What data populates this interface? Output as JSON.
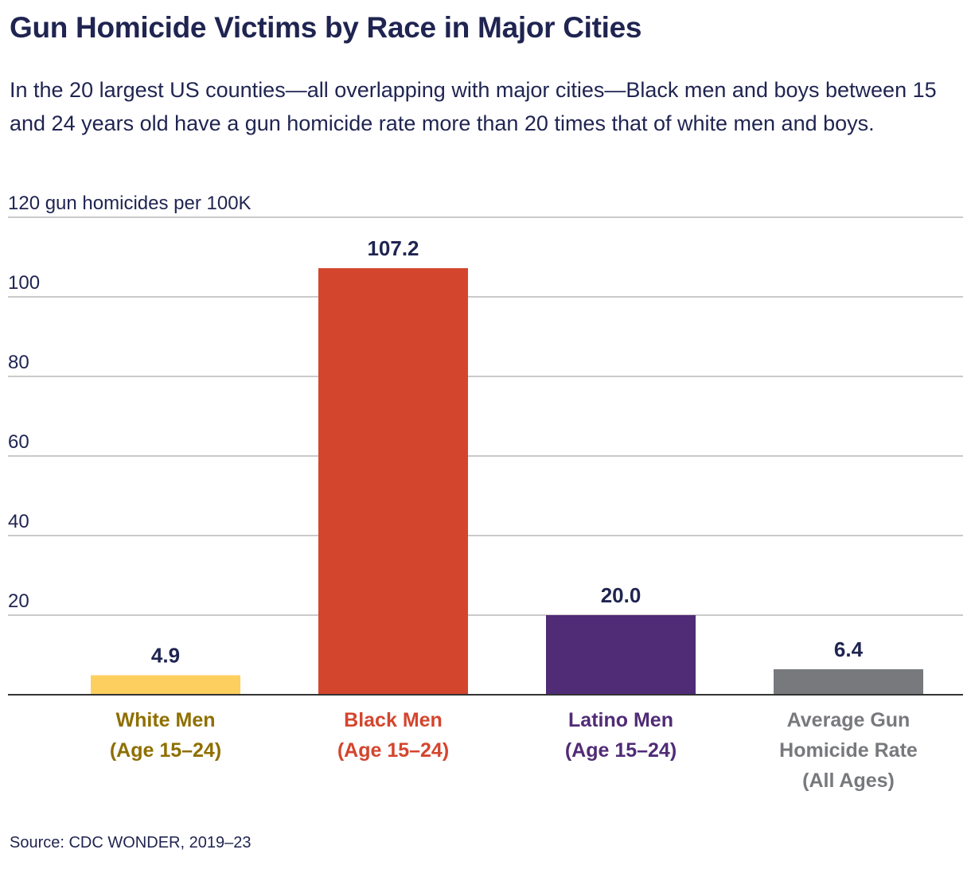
{
  "title": "Gun Homicide Victims by Race in Major Cities",
  "subtitle": "In the 20 largest US counties—all overlapping with major cities—Black men and boys between 15 and 24 years old have a gun homicide rate more than 20 times that of white men and boys.",
  "source": "Source: CDC WONDER, 2019–23",
  "colors": {
    "text": "#1f2451",
    "grid": "#b8b8bc",
    "axis": "#333333"
  },
  "chart_data": {
    "type": "bar",
    "ylabel": "120 gun homicides per 100K",
    "ylim": [
      0,
      120
    ],
    "yticks": [
      20,
      40,
      60,
      80,
      100
    ],
    "grid": true,
    "categories": [
      {
        "lines": [
          "White Men",
          "(Age 15–24)"
        ],
        "value": 4.9,
        "label": "4.9",
        "color": "#fdcf5f",
        "label_color": "#8f6f00"
      },
      {
        "lines": [
          "Black Men",
          "(Age 15–24)"
        ],
        "value": 107.2,
        "label": "107.2",
        "color": "#d4452e",
        "label_color": "#d4452e"
      },
      {
        "lines": [
          "Latino Men",
          "(Age 15–24)"
        ],
        "value": 20.0,
        "label": "20.0",
        "color": "#502b76",
        "label_color": "#502b76"
      },
      {
        "lines": [
          "Average Gun",
          "Homicide Rate",
          "(All Ages)"
        ],
        "value": 6.4,
        "label": "6.4",
        "color": "#77797d",
        "label_color": "#77797d"
      }
    ]
  }
}
